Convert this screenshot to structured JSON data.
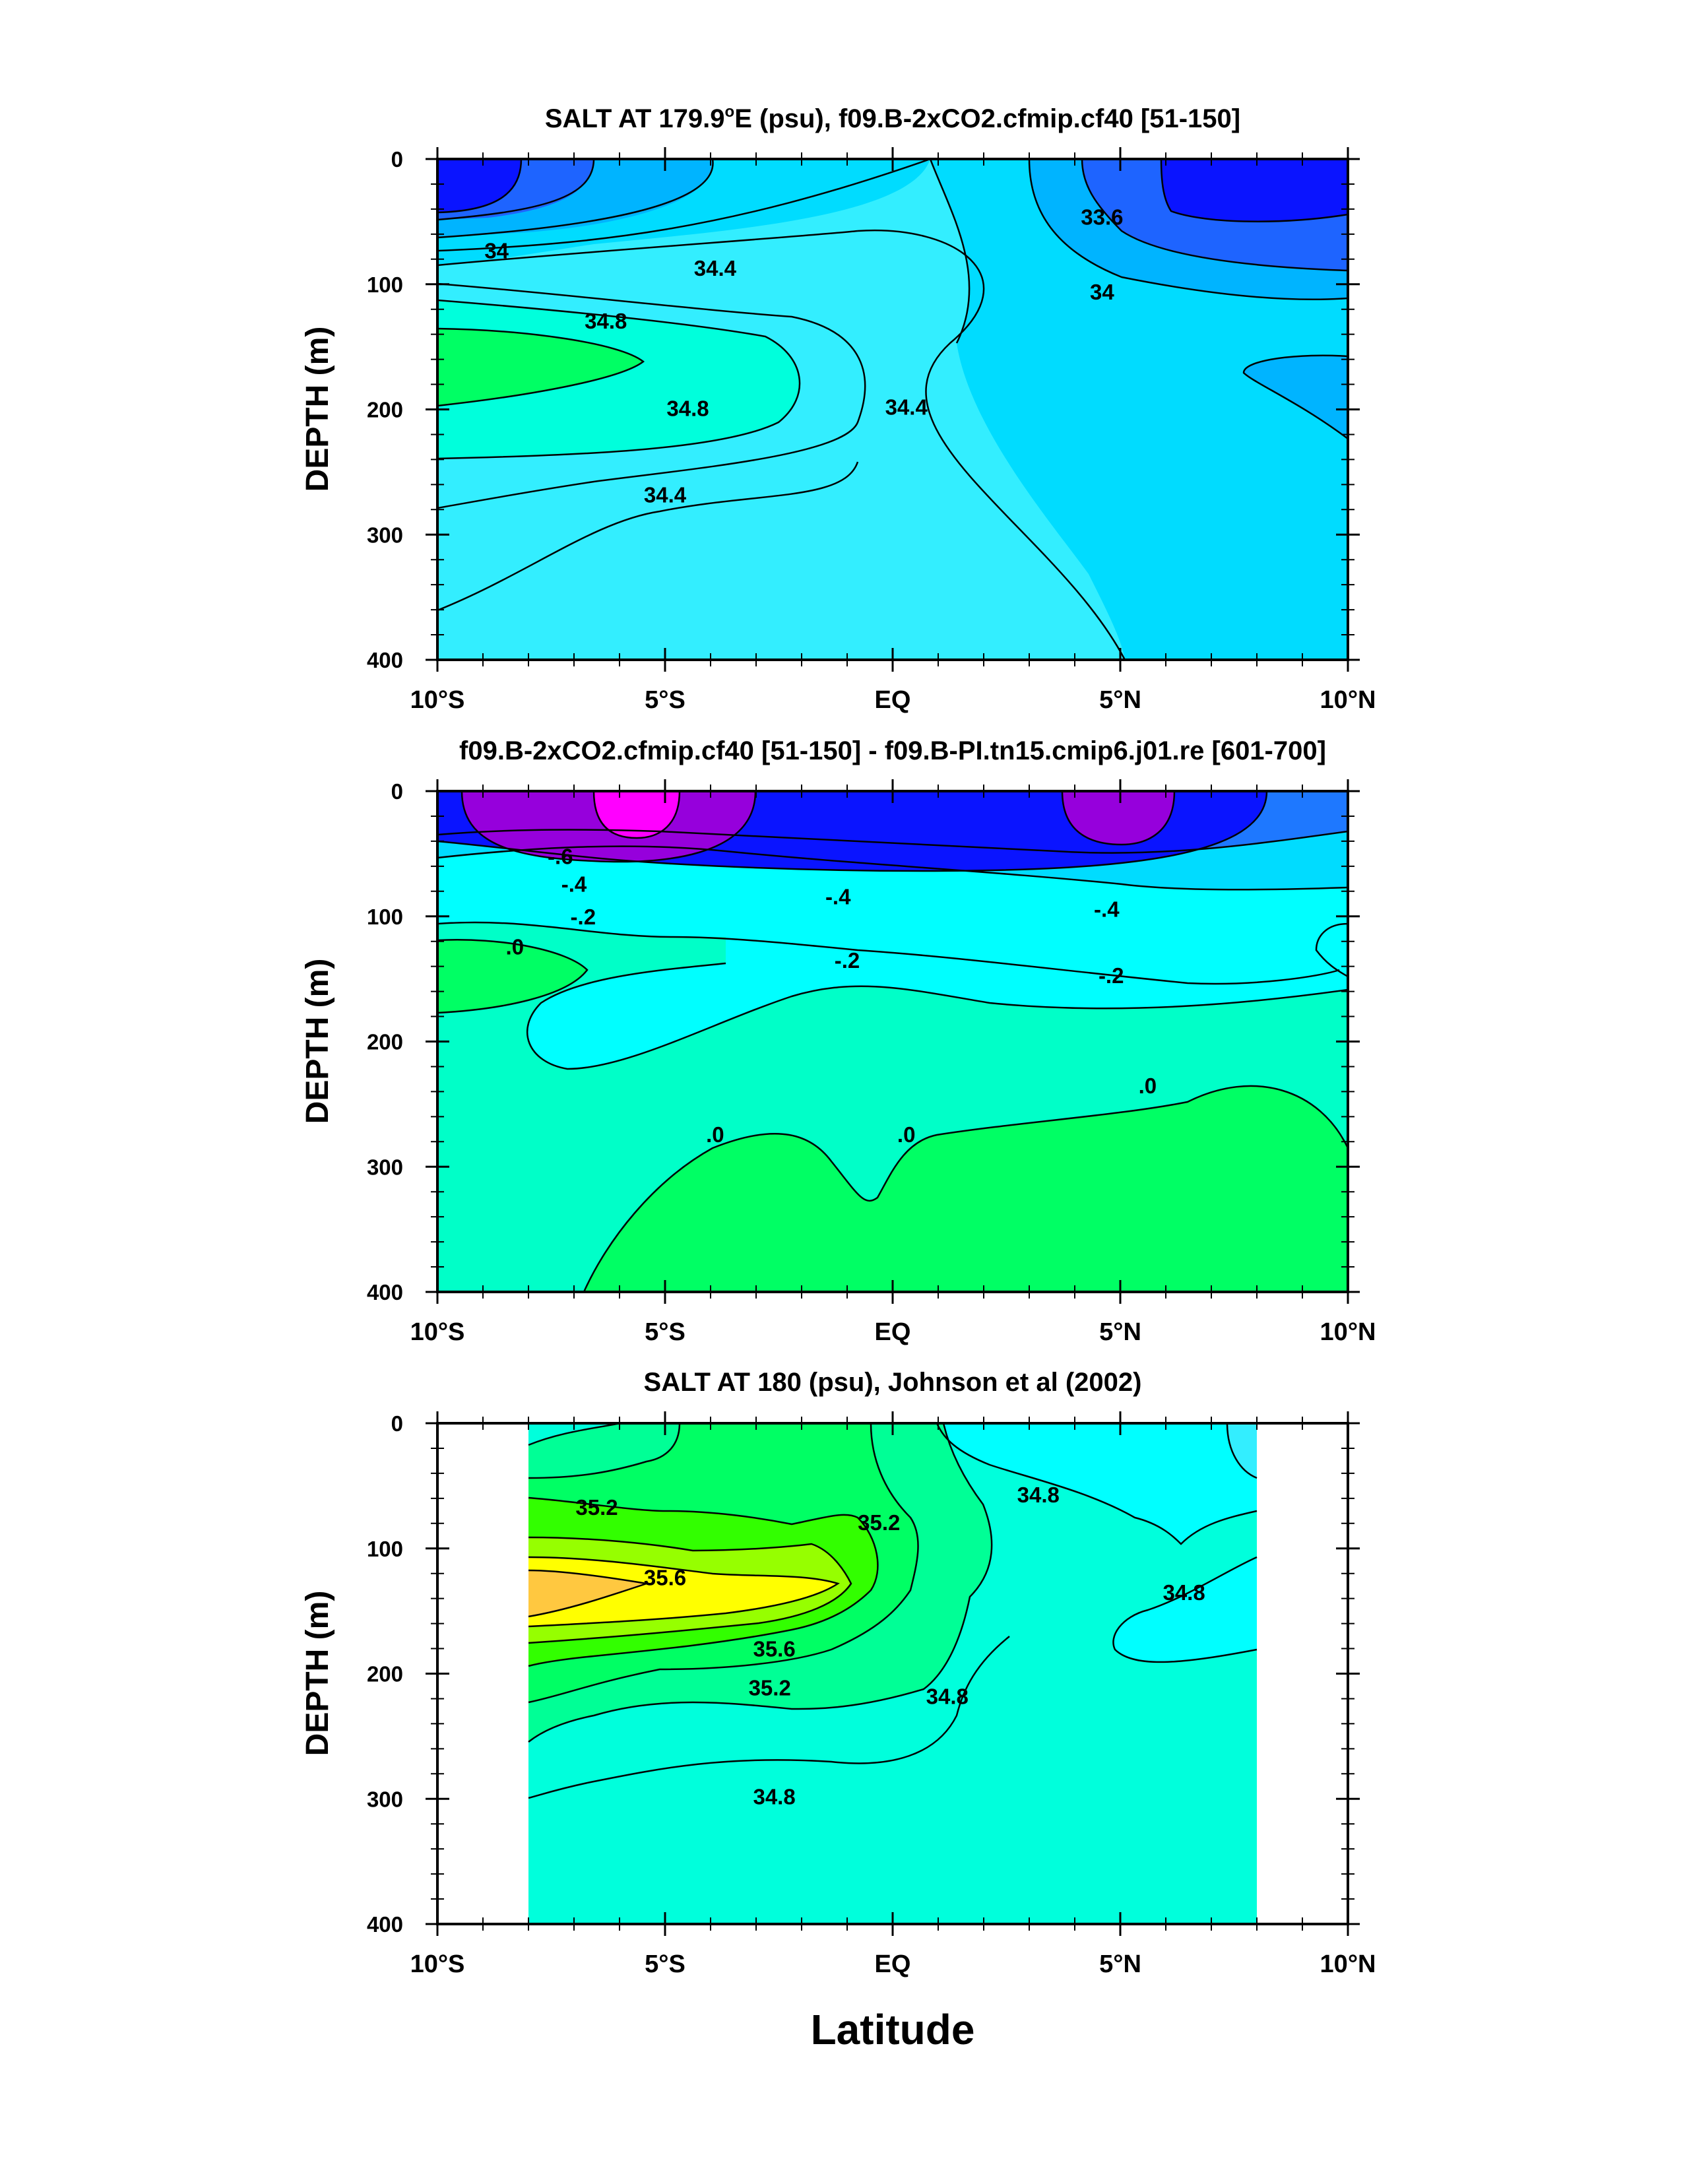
{
  "figure": {
    "xlabel": "Latitude"
  },
  "chart_data": [
    {
      "type": "contour",
      "title": "SALT AT 179.9°E (psu), f09.B-2xCO2.cfmip.cf40 [51-150]",
      "title_main": "SALT AT 179.9",
      "title_sup": "o",
      "title_rest": "E (psu), f09.B-2xCO2.cfmip.cf40 [51-150]",
      "xlabel": "",
      "ylabel": "DEPTH (m)",
      "xlim": [
        -10,
        10
      ],
      "ylim": [
        400,
        0
      ],
      "y_ticks": [
        "0",
        "100",
        "200",
        "300",
        "400"
      ],
      "x_ticks": [
        "10°S",
        "5°S",
        "EQ",
        "5°N",
        "10°N"
      ],
      "contour_labels": [
        {
          "text": "34",
          "lat": -8.7,
          "depth": 73
        },
        {
          "text": "34.4",
          "lat": -3.9,
          "depth": 87
        },
        {
          "text": "34.8",
          "lat": -6.3,
          "depth": 129
        },
        {
          "text": "34.8",
          "lat": -4.5,
          "depth": 199
        },
        {
          "text": "34.4",
          "lat": 0.3,
          "depth": 198
        },
        {
          "text": "34.4",
          "lat": -5.0,
          "depth": 268
        },
        {
          "text": "33.6",
          "lat": 4.6,
          "depth": 46
        },
        {
          "text": "34",
          "lat": 4.6,
          "depth": 106
        }
      ],
      "colors": [
        "#0a14ff",
        "#1e64ff",
        "#00b4ff",
        "#00dcff",
        "#33eeff",
        "#00ffdc",
        "#00ff64"
      ]
    },
    {
      "type": "contour",
      "title": "f09.B-2xCO2.cfmip.cf40 [51-150] - f09.B-PI.tn15.cmip6.j01.re [601-700]",
      "xlabel": "",
      "ylabel": "DEPTH (m)",
      "xlim": [
        -10,
        10
      ],
      "ylim": [
        400,
        0
      ],
      "y_ticks": [
        "0",
        "100",
        "200",
        "300",
        "400"
      ],
      "x_ticks": [
        "10°S",
        "5°S",
        "EQ",
        "5°N",
        "10°N"
      ],
      "contour_labels": [
        {
          "text": "-.6",
          "lat": -7.3,
          "depth": 52
        },
        {
          "text": "-.4",
          "lat": -7.0,
          "depth": 74
        },
        {
          "text": "-.2",
          "lat": -6.8,
          "depth": 100
        },
        {
          "text": ".0",
          "lat": -8.3,
          "depth": 124
        },
        {
          "text": "-.4",
          "lat": -1.2,
          "depth": 84
        },
        {
          "text": "-.2",
          "lat": -1.0,
          "depth": 135
        },
        {
          "text": "-.4",
          "lat": 4.7,
          "depth": 94
        },
        {
          "text": "-.2",
          "lat": 4.8,
          "depth": 147
        },
        {
          "text": ".0",
          "lat": 5.6,
          "depth": 235
        },
        {
          "text": ".0",
          "lat": -3.9,
          "depth": 274
        },
        {
          "text": ".0",
          "lat": 0.3,
          "depth": 274
        }
      ],
      "colors": [
        "#ff00ff",
        "#9600dc",
        "#0a14ff",
        "#1e78ff",
        "#00dcff",
        "#00ffff",
        "#00ffc8",
        "#00ff64"
      ]
    },
    {
      "type": "contour",
      "title": "SALT AT 180 (psu), Johnson et al (2002)",
      "xlabel": "Latitude",
      "ylabel": "DEPTH (m)",
      "xlim": [
        -10,
        10
      ],
      "ylim": [
        400,
        0
      ],
      "data_extent_lat": [
        -8,
        8
      ],
      "y_ticks": [
        "0",
        "100",
        "200",
        "300",
        "400"
      ],
      "x_ticks": [
        "10°S",
        "5°S",
        "EQ",
        "5°N",
        "10°N"
      ],
      "contour_labels": [
        {
          "text": "35.2",
          "lat": -6.5,
          "depth": 67
        },
        {
          "text": "35.6",
          "lat": -5.0,
          "depth": 123
        },
        {
          "text": "35.6",
          "lat": -2.6,
          "depth": 180
        },
        {
          "text": "35.2",
          "lat": -2.7,
          "depth": 211
        },
        {
          "text": "35.2",
          "lat": -0.3,
          "depth": 79
        },
        {
          "text": "34.8",
          "lat": 1.2,
          "depth": 218
        },
        {
          "text": "34.8",
          "lat": -2.6,
          "depth": 298
        },
        {
          "text": "34.8",
          "lat": 3.2,
          "depth": 57
        },
        {
          "text": "34.8",
          "lat": 6.4,
          "depth": 135
        }
      ],
      "colors": [
        "#00ffdc",
        "#00ffff",
        "#00ff96",
        "#00ff64",
        "#32ff00",
        "#96ff00",
        "#ffff00",
        "#ffc840"
      ]
    }
  ]
}
